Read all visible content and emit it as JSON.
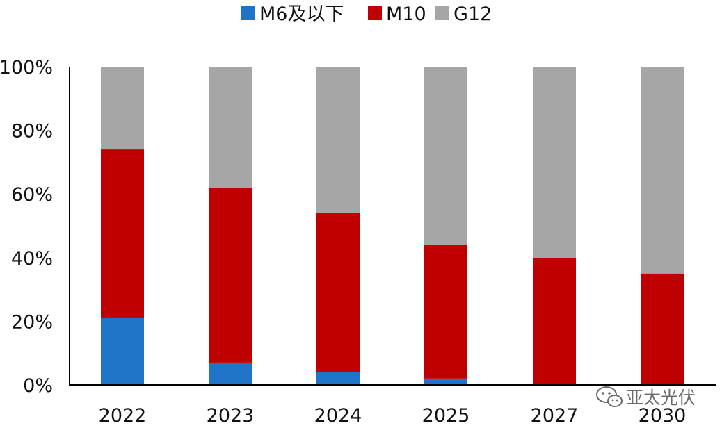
{
  "chart_data": {
    "type": "bar",
    "stacked": true,
    "categories": [
      "2022",
      "2023",
      "2024",
      "2025",
      "2027",
      "2030"
    ],
    "series": [
      {
        "name": "M6及以下",
        "color": "#1f74c9",
        "values": [
          21,
          7,
          4,
          2,
          0,
          0
        ]
      },
      {
        "name": "M10",
        "color": "#c00000",
        "values": [
          53,
          55,
          50,
          42,
          40,
          35
        ]
      },
      {
        "name": "G12",
        "color": "#a6a6a6",
        "values": [
          26,
          38,
          46,
          56,
          60,
          65
        ]
      }
    ],
    "y_ticks": [
      "0%",
      "20%",
      "40%",
      "60%",
      "80%",
      "100%"
    ],
    "ylim": [
      0,
      100
    ],
    "legend_position": "top",
    "grid": false
  },
  "watermark": {
    "text": "亚太光伏",
    "icon": "wechat-icon"
  }
}
